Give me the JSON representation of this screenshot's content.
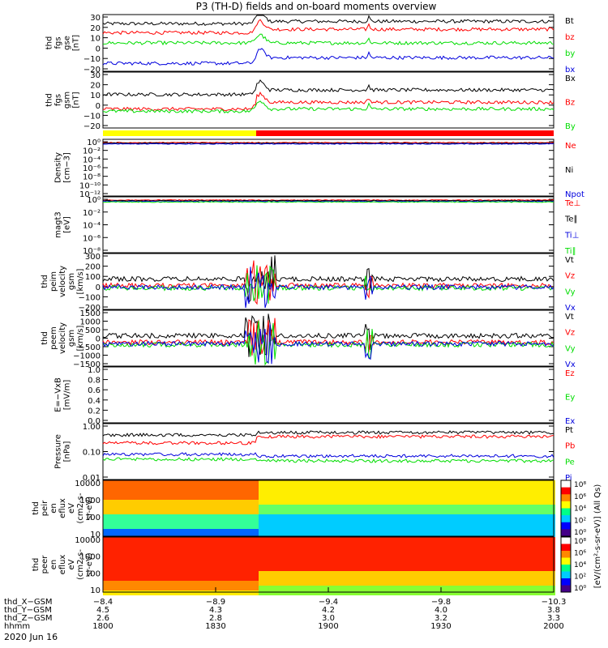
{
  "title": "P3 (TH-D) fields and on-board moments overview",
  "date_label": "2020 Jun 16",
  "colorbar_label": "[eV/(cm²-s-sr-eV)] (All Qs)",
  "colorbar_ticks": [
    "10⁸",
    "10⁶",
    "10⁴",
    "10²",
    "10⁰"
  ],
  "colors": {
    "black": "#000000",
    "red": "#ff0000",
    "green": "#00dd00",
    "blue": "#0000dd"
  },
  "chart_data": [
    {
      "type": "line",
      "ylabel": [
        "thd",
        "fgs",
        "gse",
        "[nT]"
      ],
      "ylim": [
        -20,
        30
      ],
      "yticks": [
        "30",
        "20",
        "10",
        "0",
        "−10",
        "−20"
      ],
      "series": [
        {
          "name": "Bt",
          "color": "black",
          "baseline": 22,
          "jump": 2
        },
        {
          "name": "bz",
          "color": "red",
          "baseline": 14,
          "jump": 3
        },
        {
          "name": "by",
          "color": "green",
          "baseline": 5,
          "jump": 0
        },
        {
          "name": "bx",
          "color": "blue",
          "baseline": -13,
          "jump": 5
        }
      ]
    },
    {
      "type": "line",
      "ylabel": [
        "thd",
        "fgs",
        "gsm",
        "[nT]"
      ],
      "ylim": [
        -20,
        30
      ],
      "yticks": [
        "30",
        "20",
        "10",
        "0",
        "−10",
        "−20"
      ],
      "series": [
        {
          "name": "Bx",
          "color": "black",
          "baseline": 10,
          "jump": 4
        },
        {
          "name": "Bz",
          "color": "red",
          "baseline": -3,
          "jump": 6
        },
        {
          "name": "By",
          "color": "green",
          "baseline": -5,
          "jump": 2
        }
      ]
    },
    {
      "type": "line",
      "ylabel": [
        "Density",
        "[cm−3]"
      ],
      "ylim": "log",
      "yticks": [
        "10⁰",
        "10⁻²",
        "10⁻⁴",
        "10⁻⁶",
        "10⁻⁸",
        "10⁻¹⁰",
        "10⁻¹²"
      ],
      "series": [
        {
          "name": "Ne",
          "color": "red"
        },
        {
          "name": "Ni",
          "color": "black"
        },
        {
          "name": "Npot",
          "color": "blue"
        }
      ]
    },
    {
      "type": "line",
      "ylabel": [
        "magt3",
        "[eV]"
      ],
      "ylim": "log",
      "yticks": [
        "10⁰",
        "10⁻²",
        "10⁻⁴",
        "10⁻⁶",
        "10⁻⁸"
      ],
      "series": [
        {
          "name": "Te⊥",
          "color": "red"
        },
        {
          "name": "Te∥",
          "color": "black"
        },
        {
          "name": "Ti⊥",
          "color": "blue"
        },
        {
          "name": "Ti∥",
          "color": "green"
        }
      ]
    },
    {
      "type": "line",
      "ylabel": [
        "thd",
        "peim",
        "velocity",
        "gsm",
        "[km/s]"
      ],
      "ylim": [
        -200,
        300
      ],
      "yticks": [
        "300",
        "200",
        "100",
        "0",
        "−100",
        "−200"
      ],
      "series": [
        {
          "name": "Vt",
          "color": "black"
        },
        {
          "name": "Vz",
          "color": "red"
        },
        {
          "name": "Vy",
          "color": "green"
        },
        {
          "name": "Vx",
          "color": "blue"
        }
      ]
    },
    {
      "type": "line",
      "ylabel": [
        "thd",
        "peem",
        "velocity",
        "gsm",
        "[km/s]"
      ],
      "ylim": [
        -1500,
        1500
      ],
      "yticks": [
        "1500",
        "1000",
        "500",
        "0",
        "−500",
        "−1000",
        "−1500"
      ],
      "series": [
        {
          "name": "Vt",
          "color": "black"
        },
        {
          "name": "Vz",
          "color": "red"
        },
        {
          "name": "Vy",
          "color": "green"
        },
        {
          "name": "Vx",
          "color": "blue"
        }
      ]
    },
    {
      "type": "line",
      "ylabel": [
        "E=−VxB",
        "[mV/m]"
      ],
      "ylim": [
        0,
        1
      ],
      "yticks": [
        "1.0",
        "0.8",
        "0.6",
        "0.4",
        "0.2",
        "0.0"
      ],
      "series": [
        {
          "name": "Ez",
          "color": "red"
        },
        {
          "name": "Ey",
          "color": "green"
        },
        {
          "name": "Ex",
          "color": "blue"
        }
      ]
    },
    {
      "type": "line",
      "ylabel": [
        "Pressure",
        "[nPa]"
      ],
      "ylim": [
        0.01,
        1
      ],
      "yticks": [
        "1.00",
        "0.10",
        "0.01"
      ],
      "series": [
        {
          "name": "Pt",
          "color": "black"
        },
        {
          "name": "Pb",
          "color": "red"
        },
        {
          "name": "Pe",
          "color": "green"
        },
        {
          "name": "Pi",
          "color": "blue"
        }
      ]
    },
    {
      "type": "heatmap",
      "ylabel": [
        "thd",
        "peir",
        "en",
        "eflux",
        "eV",
        "(cm2-s-",
        "sr-eV)"
      ],
      "yticks": [
        "10000",
        "1000",
        "100",
        "10"
      ]
    },
    {
      "type": "heatmap",
      "ylabel": [
        "thd",
        "peer",
        "en",
        "eflux",
        "eV",
        "(cm2-s-",
        "sr-eV)"
      ],
      "yticks": [
        "10000",
        "1000",
        "100",
        "10"
      ]
    }
  ],
  "x_axis": {
    "ticks": [
      {
        "hhmm": "1800",
        "X": "−8.4",
        "Y": "4.5",
        "Z": "2.6"
      },
      {
        "hhmm": "1830",
        "X": "−8.9",
        "Y": "4.3",
        "Z": "2.8"
      },
      {
        "hhmm": "1900",
        "X": "−9.4",
        "Y": "4.2",
        "Z": "3.0"
      },
      {
        "hhmm": "1930",
        "X": "−9.8",
        "Y": "4.0",
        "Z": "3.2"
      },
      {
        "hhmm": "2000",
        "X": "−10.3",
        "Y": "3.8",
        "Z": "3.3"
      }
    ],
    "row_labels": [
      "thd_X−GSM",
      "thd_Y−GSM",
      "thd_Z−GSM",
      "hhmm"
    ]
  }
}
